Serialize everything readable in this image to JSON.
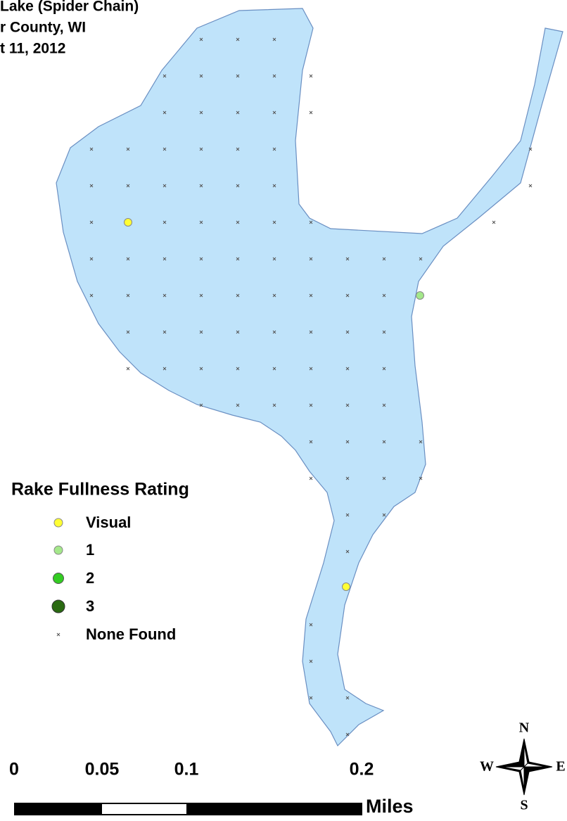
{
  "header": {
    "title_lines": [
      "Lake (Spider Chain)",
      "r County, WI",
      "t 11, 2012"
    ]
  },
  "legend": {
    "title": "Rake Fullness Rating",
    "items": [
      "Visual",
      "1",
      "2",
      "3",
      "None Found"
    ]
  },
  "scale": {
    "labels": [
      "0",
      "0.05",
      "0.1",
      "0.2"
    ],
    "unit": "Miles"
  },
  "compass": {
    "n": "N",
    "e": "E",
    "s": "S",
    "w": "W"
  }
}
